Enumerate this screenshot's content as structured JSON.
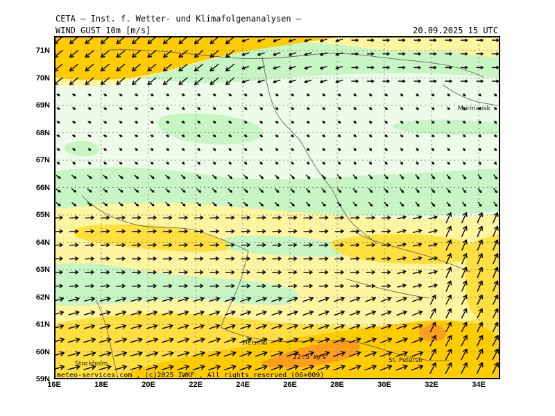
{
  "header": {
    "organization": "CETA — Inst. f. Wetter- und Klimafolgenanalysen —",
    "parameter": "WIND GUST 10m [m/s]",
    "valid_time": "20.09.2025 15 UTC"
  },
  "footer": {
    "credit": "meteo-services.com , (c)2025 IWKF , All rights reserved (06+009)"
  },
  "map": {
    "lat_labels": [
      "59N",
      "60N",
      "61N",
      "62N",
      "63N",
      "64N",
      "65N",
      "66N",
      "67N",
      "68N",
      "69N",
      "70N",
      "71N"
    ],
    "lon_labels": [
      "16E",
      "18E",
      "20E",
      "22E",
      "24E",
      "26E",
      "28E",
      "30E",
      "32E",
      "34E"
    ],
    "max_label": "22.5 m/s",
    "cities": {
      "murmansk": "Murmansk",
      "helsinki": "Helsinki",
      "stockholm": "Stockholm",
      "st_petersburg": "St. Petersb"
    },
    "colors": {
      "very_light_green": "#ecfce8",
      "light_green": "#c8f5c4",
      "light_yellow": "#fff5a0",
      "yellow": "#ffe040",
      "gold": "#ffcc00",
      "orange": "#ff9e1a",
      "grid": "#8a8a8a",
      "coast": "#555555"
    }
  }
}
